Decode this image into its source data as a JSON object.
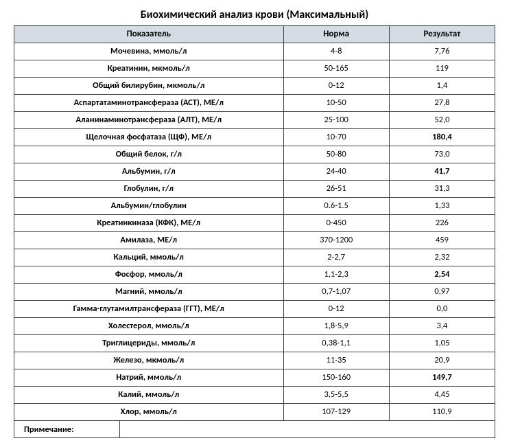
{
  "title": "Биохимический анализ крови (Максимальный)",
  "columns": [
    "Показатель",
    "Норма",
    "Результат"
  ],
  "col_widths_pct": [
    56,
    22,
    22
  ],
  "header_bg": "#d5dce4",
  "border_color": "#404040",
  "title_fontsize_pt": 12,
  "header_fontsize_pt": 10,
  "cell_fontsize_pt": 9.5,
  "rows": [
    {
      "indicator": "Мочевина, ммоль/л",
      "norm": "4-8",
      "result": "7,76",
      "flag": false
    },
    {
      "indicator": "Креатинин, мкмоль/л",
      "norm": "50-165",
      "result": "119",
      "flag": false
    },
    {
      "indicator": "Общий билирубин, мкмоль/л",
      "norm": "0-12",
      "result": "1,4",
      "flag": false
    },
    {
      "indicator": "Аспартатаминотрансфераза (АСТ), МЕ/л",
      "norm": "10-50",
      "result": "27,8",
      "flag": false
    },
    {
      "indicator": "Аланинаминотрансфераза (АЛТ), МЕ/л",
      "norm": "25-100",
      "result": "52,0",
      "flag": false
    },
    {
      "indicator": "Щелочная фосфатаза (ЩФ), МЕ/л",
      "norm": "10-70",
      "result": "180,4",
      "flag": true
    },
    {
      "indicator": "Общий белок, г/л",
      "norm": "50-80",
      "result": "73,0",
      "flag": false
    },
    {
      "indicator": "Альбумин, г/л",
      "norm": "24-40",
      "result": "41,7",
      "flag": true
    },
    {
      "indicator": "Глобулин, г/л",
      "norm": "26-51",
      "result": "31,3",
      "flag": false
    },
    {
      "indicator": "Альбумин/глобулин",
      "norm": "0.6-1.5",
      "result": "1,33",
      "flag": false
    },
    {
      "indicator": "Креатинкиназа (КФК), МЕ/л",
      "norm": "0-450",
      "result": "226",
      "flag": false
    },
    {
      "indicator": "Амилаза, МЕ/л",
      "norm": "370-1200",
      "result": "459",
      "flag": false
    },
    {
      "indicator": "Кальций, ммоль/л",
      "norm": "2-2,7",
      "result": "2,32",
      "flag": false
    },
    {
      "indicator": "Фосфор, ммоль/л",
      "norm": "1,1-2,3",
      "result": "2,54",
      "flag": true
    },
    {
      "indicator": "Магний, ммоль/л",
      "norm": "0,7-1,07",
      "result": "0,97",
      "flag": false
    },
    {
      "indicator": "Гамма-глутамилтрансфераза (ГГТ), МЕ/л",
      "norm": "0-12",
      "result": "0,0",
      "flag": false
    },
    {
      "indicator": "Холестерол, ммоль/л",
      "norm": "1,8-5,9",
      "result": "3,4",
      "flag": false
    },
    {
      "indicator": "Триглицериды, ммоль/л",
      "norm": "0,38-1,1",
      "result": "1,05",
      "flag": false
    },
    {
      "indicator": "Железо, мкмоль/л",
      "norm": "11-35",
      "result": "20,9",
      "flag": false
    },
    {
      "indicator": "Натрий, ммоль/л",
      "norm": "150-160",
      "result": "149,7",
      "flag": true
    },
    {
      "indicator": "Калий, ммоль/л",
      "norm": "3,5-5,5",
      "result": "4,45",
      "flag": false
    },
    {
      "indicator": "Хлор, ммоль/л",
      "norm": "107-129",
      "result": "110,9",
      "flag": false
    }
  ],
  "notes_label": "Примечание:",
  "notes_value": ""
}
